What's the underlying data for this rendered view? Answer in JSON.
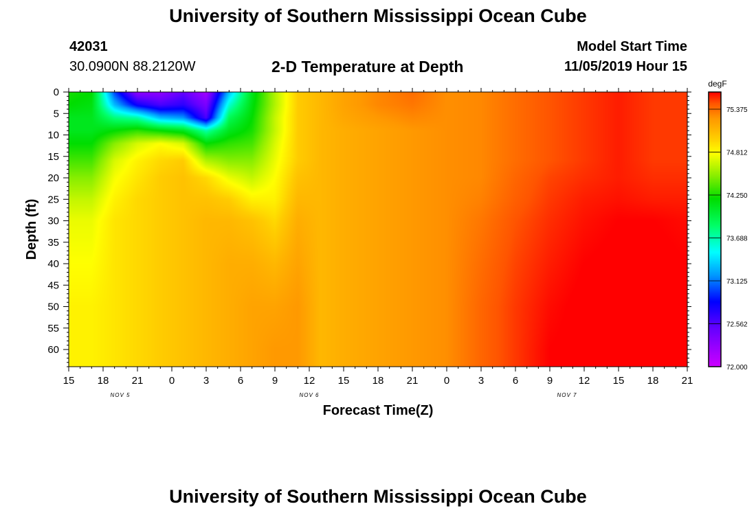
{
  "page": {
    "title_top": "University of Southern Mississippi Ocean Cube",
    "title_bottom": "University of Southern Mississippi Ocean Cube",
    "station_id": "42031",
    "station_coords": "30.0900N 88.2120W",
    "plot_title": "2-D Temperature at Depth",
    "model_start_label": "Model Start Time",
    "model_start_value": "11/05/2019 Hour 15"
  },
  "chart_data": {
    "type": "heatmap",
    "title": "2-D Temperature at Depth",
    "xlabel": "Forecast Time(Z)",
    "ylabel": "Depth (ft)",
    "x_ticks": [
      "15",
      "18",
      "21",
      "0",
      "3",
      "6",
      "9",
      "12",
      "15",
      "18",
      "21",
      "0",
      "3",
      "6",
      "9",
      "12",
      "15",
      "18",
      "21"
    ],
    "x_hours": [
      0,
      3,
      6,
      9,
      12,
      15,
      18,
      21,
      24,
      27,
      30,
      33,
      36,
      39,
      42,
      45,
      48,
      51,
      54
    ],
    "date_labels": [
      {
        "label": "NOV 5",
        "hour": 4.5
      },
      {
        "label": "NOV 6",
        "hour": 21
      },
      {
        "label": "NOV 7",
        "hour": 43.5
      }
    ],
    "y_ticks": [
      0,
      5,
      10,
      15,
      20,
      25,
      30,
      35,
      40,
      45,
      50,
      55,
      60
    ],
    "xlim": [
      0,
      54
    ],
    "ylim": [
      0,
      64
    ],
    "colorbar": {
      "unit": "degF",
      "min": 72.0,
      "max": 75.6,
      "tick_values": [
        72.0,
        72.562,
        73.125,
        73.688,
        74.25,
        74.812,
        75.375
      ],
      "tick_labels": [
        "72.000",
        "72.562",
        "73.125",
        "73.688",
        "74.250",
        "74.812",
        "75.375"
      ]
    },
    "colorscale": [
      [
        72.0,
        "#cc00ff"
      ],
      [
        72.5,
        "#6600ff"
      ],
      [
        72.85,
        "#0000ff"
      ],
      [
        73.2,
        "#0099ff"
      ],
      [
        73.5,
        "#00ffff"
      ],
      [
        73.85,
        "#00ff66"
      ],
      [
        74.2,
        "#00dd00"
      ],
      [
        74.5,
        "#88ee00"
      ],
      [
        74.8,
        "#ffff00"
      ],
      [
        75.0,
        "#ffcc00"
      ],
      [
        75.25,
        "#ff9900"
      ],
      [
        75.45,
        "#ff5500"
      ],
      [
        75.6,
        "#ff0000"
      ]
    ],
    "profiles": {
      "depths": [
        0,
        3,
        6,
        9,
        12,
        16,
        20,
        25,
        30,
        40,
        50,
        60,
        64
      ],
      "hours": [
        0,
        2,
        4,
        6,
        8,
        10,
        12,
        14,
        16,
        18,
        20,
        22,
        24,
        27,
        30,
        33,
        36,
        39,
        42,
        45,
        48,
        51,
        54
      ],
      "values": [
        [
          74.25,
          74.2,
          74.1,
          74.1,
          74.2,
          74.35,
          74.5,
          74.65,
          74.75,
          74.8,
          74.85,
          74.85,
          74.85
        ],
        [
          74.2,
          74.15,
          74.1,
          74.1,
          74.2,
          74.35,
          74.5,
          74.65,
          74.75,
          74.8,
          74.85,
          74.85,
          74.85
        ],
        [
          73.0,
          73.3,
          73.8,
          74.2,
          74.5,
          74.7,
          74.78,
          74.85,
          74.9,
          74.9,
          74.9,
          74.9,
          74.9
        ],
        [
          72.3,
          72.8,
          73.7,
          74.3,
          74.7,
          74.85,
          74.9,
          74.95,
          74.95,
          74.95,
          74.95,
          74.95,
          74.95
        ],
        [
          72.3,
          72.6,
          73.3,
          74.2,
          74.8,
          74.95,
          75.0,
          75.0,
          75.0,
          75.0,
          75.0,
          75.0,
          75.0
        ],
        [
          72.5,
          72.7,
          73.2,
          74.1,
          74.7,
          75.0,
          75.05,
          75.05,
          75.05,
          75.05,
          75.05,
          75.05,
          75.05
        ],
        [
          72.2,
          72.4,
          72.6,
          73.7,
          74.2,
          74.6,
          74.95,
          75.05,
          75.1,
          75.1,
          75.1,
          75.1,
          75.1
        ],
        [
          73.3,
          73.6,
          73.9,
          74.1,
          74.3,
          74.5,
          74.75,
          75.0,
          75.1,
          75.15,
          75.15,
          75.15,
          75.15
        ],
        [
          74.1,
          74.15,
          74.2,
          74.25,
          74.35,
          74.5,
          74.65,
          74.85,
          75.05,
          75.15,
          75.2,
          75.2,
          75.2
        ],
        [
          74.6,
          74.6,
          74.65,
          74.65,
          74.7,
          74.75,
          74.8,
          74.85,
          74.95,
          75.1,
          75.2,
          75.25,
          75.25
        ],
        [
          75.0,
          75.0,
          75.0,
          75.0,
          75.0,
          75.0,
          75.05,
          75.1,
          75.15,
          75.2,
          75.25,
          75.25,
          75.25
        ],
        [
          75.1,
          75.1,
          75.1,
          75.1,
          75.1,
          75.1,
          75.1,
          75.1,
          75.1,
          75.1,
          75.1,
          75.1,
          75.1
        ],
        [
          75.2,
          75.2,
          75.18,
          75.15,
          75.15,
          75.15,
          75.15,
          75.15,
          75.15,
          75.15,
          75.15,
          75.15,
          75.15
        ],
        [
          75.3,
          75.3,
          75.25,
          75.2,
          75.2,
          75.2,
          75.2,
          75.2,
          75.2,
          75.2,
          75.2,
          75.2,
          75.2
        ],
        [
          75.38,
          75.35,
          75.3,
          75.25,
          75.25,
          75.25,
          75.25,
          75.25,
          75.25,
          75.25,
          75.25,
          75.25,
          75.25
        ],
        [
          75.28,
          75.28,
          75.28,
          75.28,
          75.28,
          75.28,
          75.28,
          75.28,
          75.28,
          75.28,
          75.28,
          75.28,
          75.28
        ],
        [
          75.3,
          75.3,
          75.3,
          75.3,
          75.3,
          75.3,
          75.3,
          75.32,
          75.35,
          75.38,
          75.4,
          75.4,
          75.4
        ],
        [
          75.38,
          75.38,
          75.38,
          75.38,
          75.38,
          75.38,
          75.4,
          75.42,
          75.45,
          75.48,
          75.5,
          75.5,
          75.5
        ],
        [
          75.45,
          75.45,
          75.45,
          75.45,
          75.45,
          75.45,
          75.48,
          75.5,
          75.52,
          75.55,
          75.58,
          75.6,
          75.6
        ],
        [
          75.5,
          75.5,
          75.5,
          75.5,
          75.5,
          75.5,
          75.52,
          75.55,
          75.57,
          75.6,
          75.62,
          75.62,
          75.62
        ],
        [
          75.55,
          75.55,
          75.55,
          75.55,
          75.55,
          75.55,
          75.55,
          75.57,
          75.6,
          75.62,
          75.62,
          75.62,
          75.62
        ],
        [
          75.5,
          75.5,
          75.5,
          75.5,
          75.5,
          75.5,
          75.52,
          75.55,
          75.6,
          75.62,
          75.62,
          75.62,
          75.62
        ],
        [
          75.5,
          75.5,
          75.5,
          75.5,
          75.5,
          75.5,
          75.52,
          75.55,
          75.58,
          75.6,
          75.62,
          75.62,
          75.62
        ]
      ]
    }
  }
}
